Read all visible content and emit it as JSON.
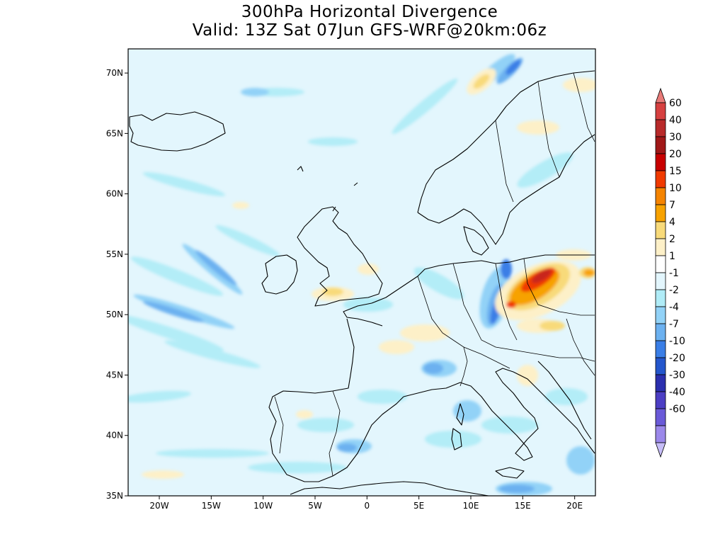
{
  "title": {
    "line1": "300hPa Horizontal Divergence",
    "line2": "Valid: 13Z Sat 07Jun GFS-WRF@20km:06z"
  },
  "map": {
    "lon_range": [
      -23,
      22
    ],
    "lat_range": [
      35,
      72
    ],
    "lat_ticks": [
      {
        "value": 70,
        "label": "70N"
      },
      {
        "value": 65,
        "label": "65N"
      },
      {
        "value": 60,
        "label": "60N"
      },
      {
        "value": 55,
        "label": "55N"
      },
      {
        "value": 50,
        "label": "50N"
      },
      {
        "value": 45,
        "label": "45N"
      },
      {
        "value": 40,
        "label": "40N"
      },
      {
        "value": 35,
        "label": "35N"
      }
    ],
    "lon_ticks": [
      {
        "value": -20,
        "label": "20W"
      },
      {
        "value": -15,
        "label": "15W"
      },
      {
        "value": -10,
        "label": "10W"
      },
      {
        "value": -5,
        "label": "5W"
      },
      {
        "value": 0,
        "label": "0"
      },
      {
        "value": 5,
        "label": "5E"
      },
      {
        "value": 10,
        "label": "10E"
      },
      {
        "value": 15,
        "label": "15E"
      },
      {
        "value": 20,
        "label": "20E"
      }
    ],
    "background_color": "#e3f6fd"
  },
  "colorbar": {
    "levels": [
      "60",
      "40",
      "30",
      "20",
      "15",
      "10",
      "7",
      "4",
      "2",
      "1",
      "-1",
      "-2",
      "-4",
      "-7",
      "-10",
      "-20",
      "-30",
      "-40",
      "-60"
    ],
    "colors": [
      "#e87a78",
      "#d64040",
      "#b82a2a",
      "#a01818",
      "#c80000",
      "#f03a00",
      "#f58400",
      "#f7a200",
      "#f8da7a",
      "#fdf0c8",
      "#ffffff",
      "#e3f6fd",
      "#b0ecf7",
      "#92d2f7",
      "#6cb1f0",
      "#3a7ee6",
      "#2456cc",
      "#2b2fae",
      "#4c3ec4",
      "#6a5ad8",
      "#9b88ea",
      "#c6bdf7"
    ]
  }
}
